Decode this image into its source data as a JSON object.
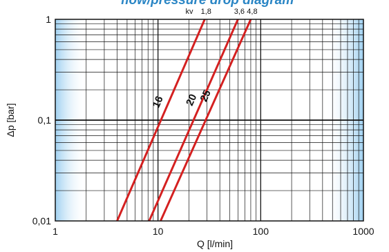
{
  "chart_data": {
    "type": "line",
    "title": "flow/pressure drop diagram",
    "xlabel": "Q [l/min]",
    "ylabel": "Δp [bar]",
    "xscale": "log",
    "yscale": "log",
    "xlim": [
      1,
      1000
    ],
    "ylim": [
      0.01,
      1
    ],
    "x_ticks": [
      "1",
      "10",
      "100",
      "1000"
    ],
    "y_ticks": [
      "0,01",
      "0,1",
      "1"
    ],
    "grid": true,
    "kv_label": "kv",
    "line_color": "#d42020",
    "shade_color": "#b7dcf4",
    "series": [
      {
        "name": "16",
        "kv_value": "1,8",
        "points": [
          [
            4.0,
            0.01
          ],
          [
            28.5,
            1.0
          ]
        ]
      },
      {
        "name": "20",
        "kv_value": "3,6",
        "points": [
          [
            8.2,
            0.01
          ],
          [
            60.0,
            1.0
          ]
        ]
      },
      {
        "name": "25",
        "kv_value": "4,8",
        "points": [
          [
            10.6,
            0.01
          ],
          [
            80.0,
            1.0
          ]
        ]
      }
    ]
  }
}
